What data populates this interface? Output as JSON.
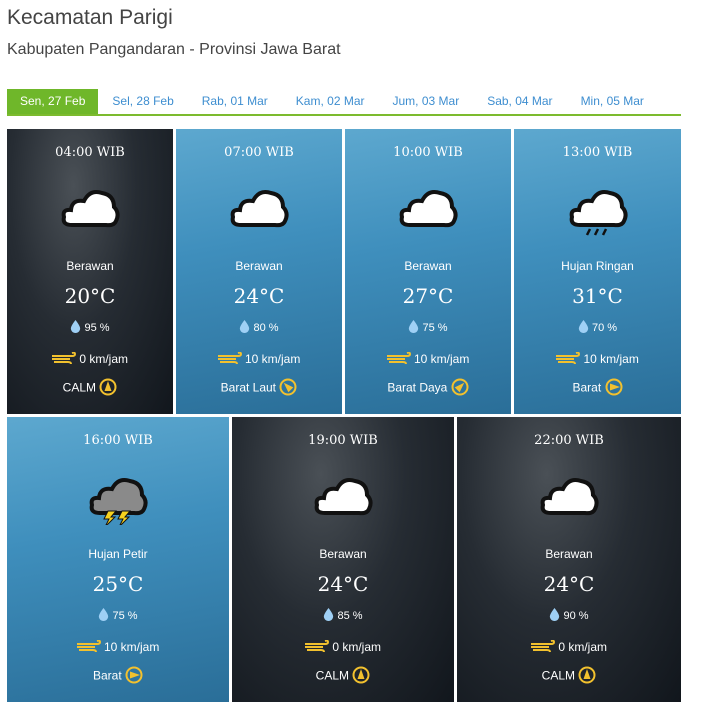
{
  "location": {
    "title": "Kecamatan Parigi",
    "subtitle": "Kabupaten Pangandaran - Provinsi Jawa Barat"
  },
  "tabs": [
    {
      "label": "Sen, 27 Feb",
      "active": true
    },
    {
      "label": "Sel, 28 Feb"
    },
    {
      "label": "Rab, 01 Mar"
    },
    {
      "label": "Kam, 02 Mar"
    },
    {
      "label": "Jum, 03 Mar"
    },
    {
      "label": "Sab, 04 Mar"
    },
    {
      "label": "Min, 05 Mar"
    }
  ],
  "colors": {
    "accent": "#6fb72a",
    "tab_text": "#3e8ed0",
    "wind_icon": "#f2c12e",
    "drop": "#9fd0f5"
  },
  "forecasts": [
    {
      "time": "04:00 WIB",
      "icon": "cloud-icon",
      "condition": "Berawan",
      "temp": "20°C",
      "humidity": "95 %",
      "wind_speed": "0 km/jam",
      "wind_dir": "CALM",
      "bg": "dark"
    },
    {
      "time": "07:00 WIB",
      "icon": "cloud-icon",
      "condition": "Berawan",
      "temp": "24°C",
      "humidity": "80 %",
      "wind_speed": "10 km/jam",
      "wind_dir": "Barat Laut",
      "bg": "blue"
    },
    {
      "time": "10:00 WIB",
      "icon": "cloud-icon",
      "condition": "Berawan",
      "temp": "27°C",
      "humidity": "75 %",
      "wind_speed": "10 km/jam",
      "wind_dir": "Barat Daya",
      "bg": "blue"
    },
    {
      "time": "13:00 WIB",
      "icon": "light-rain-icon",
      "condition": "Hujan Ringan",
      "temp": "31°C",
      "humidity": "70 %",
      "wind_speed": "10 km/jam",
      "wind_dir": "Barat",
      "bg": "blue"
    },
    {
      "time": "16:00 WIB",
      "icon": "thunderstorm-icon",
      "condition": "Hujan Petir",
      "temp": "25°C",
      "humidity": "75 %",
      "wind_speed": "10 km/jam",
      "wind_dir": "Barat",
      "bg": "blue"
    },
    {
      "time": "19:00 WIB",
      "icon": "cloud-icon",
      "condition": "Berawan",
      "temp": "24°C",
      "humidity": "85 %",
      "wind_speed": "0 km/jam",
      "wind_dir": "CALM",
      "bg": "dark"
    },
    {
      "time": "22:00 WIB",
      "icon": "cloud-icon",
      "condition": "Berawan",
      "temp": "24°C",
      "humidity": "90 %",
      "wind_speed": "0 km/jam",
      "wind_dir": "CALM",
      "bg": "dark"
    }
  ]
}
